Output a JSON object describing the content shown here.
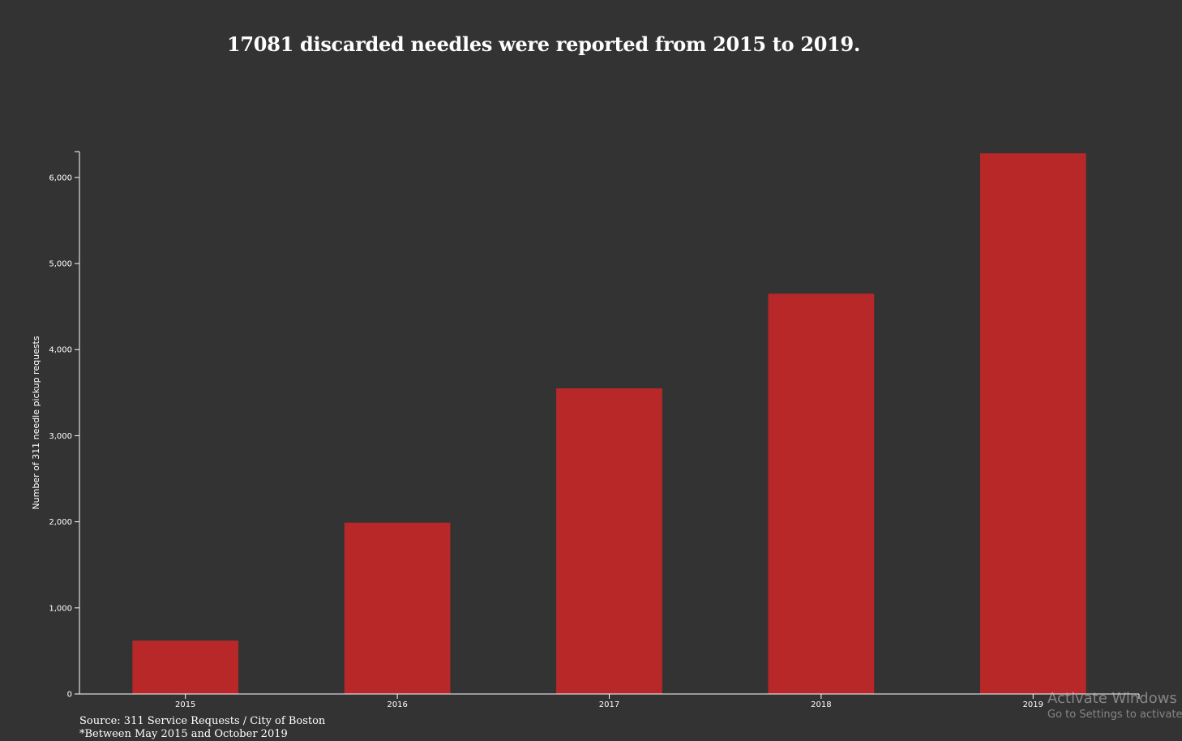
{
  "title": "17081 discarded needles were reported from 2015 to 2019.",
  "source_line1": "Source: 311 Service Requests / City of Boston",
  "source_line2": "*Between May 2015 and October 2019",
  "watermark": {
    "line1": "Activate Windows",
    "line2": "Go to Settings to activate Windows."
  },
  "colors": {
    "background": "#333333",
    "bar": "#b92828",
    "axis": "#ffffff",
    "text": "#ffffff"
  },
  "chart_data": {
    "type": "bar",
    "categories": [
      "2015",
      "2016",
      "2017",
      "2018",
      "2019"
    ],
    "values": [
      620,
      1990,
      3550,
      4650,
      6280
    ],
    "title": "17081 discarded needles were reported from 2015 to 2019.",
    "xlabel": "",
    "ylabel": "Number of 311 needle pickup requests",
    "ylim": [
      0,
      6300
    ],
    "yticks": [
      0,
      1000,
      2000,
      3000,
      4000,
      5000,
      6000
    ],
    "ytick_labels": [
      "0",
      "1,000",
      "2,000",
      "3,000",
      "4,000",
      "5,000",
      "6,000"
    ],
    "grid": false,
    "legend": "none"
  }
}
